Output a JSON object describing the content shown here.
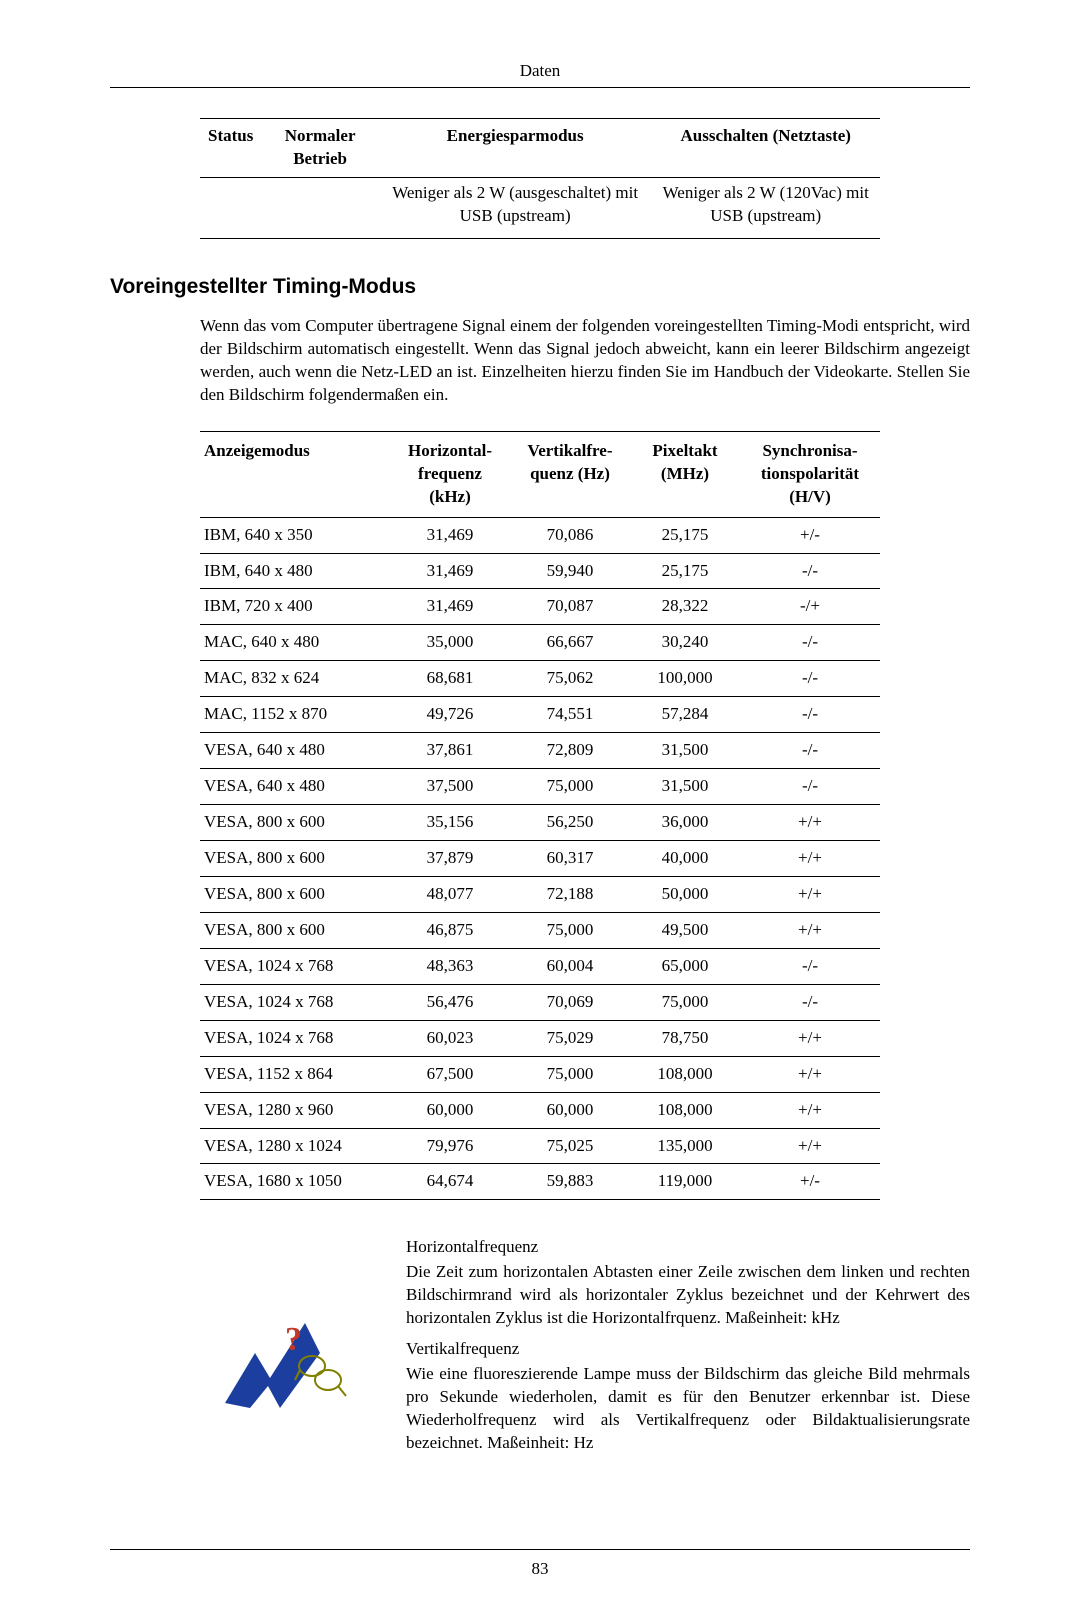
{
  "page": {
    "header_label": "Daten",
    "page_number": "83"
  },
  "status_table": {
    "headers": {
      "c1": "Status",
      "c2": "Normaler Betrieb",
      "c3": "Energiesparmodus",
      "c4": "Ausschalten (Netztaste)"
    },
    "row": {
      "c1": "",
      "c2": "",
      "c3": "Weniger als 2 W (ausgeschaltet) mit USB (upstream)",
      "c4": "Weniger als 2 W (120Vac) mit USB (upstream)"
    }
  },
  "section": {
    "title": "Voreingestellter Timing-Modus",
    "intro": "Wenn das vom Computer übertragene Signal einem der folgenden voreingestellten Timing-Modi entspricht, wird der Bildschirm automatisch eingestellt. Wenn das Signal jedoch abweicht, kann ein leerer Bildschirm angezeigt werden, auch wenn die Netz-LED an ist. Einzelheiten hierzu finden Sie im Handbuch der Videokarte. Stellen Sie den Bildschirm folgendermaßen ein."
  },
  "timing_table": {
    "headers": {
      "mode": "Anzeigemodus",
      "hfreq_l1": "Horizontal-",
      "hfreq_l2": "frequenz",
      "hfreq_l3": "(kHz)",
      "vfreq_l1": "Vertikalfre-",
      "vfreq_l2": "quenz (Hz)",
      "pix_l1": "Pixeltakt",
      "pix_l2": "(MHz)",
      "sync_l1": "Synchronisa-",
      "sync_l2": "tionspolarität",
      "sync_l3": "(H/V)"
    },
    "rows": [
      {
        "mode": "IBM, 640 x 350",
        "h": "31,469",
        "v": "70,086",
        "p": "25,175",
        "s": "+/-"
      },
      {
        "mode": "IBM, 640 x 480",
        "h": "31,469",
        "v": "59,940",
        "p": "25,175",
        "s": "-/-"
      },
      {
        "mode": "IBM, 720 x 400",
        "h": "31,469",
        "v": "70,087",
        "p": "28,322",
        "s": "-/+"
      },
      {
        "mode": "MAC, 640 x 480",
        "h": "35,000",
        "v": "66,667",
        "p": "30,240",
        "s": "-/-"
      },
      {
        "mode": "MAC, 832 x 624",
        "h": "68,681",
        "v": "75,062",
        "p": "100,000",
        "s": "-/-"
      },
      {
        "mode": "MAC, 1152 x 870",
        "h": "49,726",
        "v": "74,551",
        "p": "57,284",
        "s": "-/-"
      },
      {
        "mode": "VESA, 640 x 480",
        "h": "37,861",
        "v": "72,809",
        "p": "31,500",
        "s": "-/-"
      },
      {
        "mode": "VESA, 640 x 480",
        "h": "37,500",
        "v": "75,000",
        "p": "31,500",
        "s": "-/-"
      },
      {
        "mode": "VESA, 800 x 600",
        "h": "35,156",
        "v": "56,250",
        "p": "36,000",
        "s": "+/+"
      },
      {
        "mode": "VESA, 800 x 600",
        "h": "37,879",
        "v": "60,317",
        "p": "40,000",
        "s": "+/+"
      },
      {
        "mode": "VESA, 800 x 600",
        "h": "48,077",
        "v": "72,188",
        "p": "50,000",
        "s": "+/+"
      },
      {
        "mode": "VESA, 800 x 600",
        "h": "46,875",
        "v": "75,000",
        "p": "49,500",
        "s": "+/+"
      },
      {
        "mode": "VESA, 1024 x 768",
        "h": "48,363",
        "v": "60,004",
        "p": "65,000",
        "s": "-/-"
      },
      {
        "mode": "VESA, 1024 x 768",
        "h": "56,476",
        "v": "70,069",
        "p": "75,000",
        "s": "-/-"
      },
      {
        "mode": "VESA, 1024 x 768",
        "h": "60,023",
        "v": "75,029",
        "p": "78,750",
        "s": "+/+"
      },
      {
        "mode": "VESA, 1152 x 864",
        "h": "67,500",
        "v": "75,000",
        "p": "108,000",
        "s": "+/+"
      },
      {
        "mode": "VESA, 1280 x 960",
        "h": "60,000",
        "v": "60,000",
        "p": "108,000",
        "s": "+/+"
      },
      {
        "mode": "VESA, 1280 x 1024",
        "h": "79,976",
        "v": "75,025",
        "p": "135,000",
        "s": "+/+"
      },
      {
        "mode": "VESA, 1680 x 1050",
        "h": "64,674",
        "v": "59,883",
        "p": "119,000",
        "s": "+/-"
      }
    ]
  },
  "info": {
    "h1": "Horizontalfrequenz",
    "p1": "Die Zeit zum horizontalen Abtasten einer Zeile zwischen dem linken und rechten Bildschirmrand wird als horizontaler Zyklus bezeichnet und der Kehrwert des horizontalen Zyklus ist die Horizontalfrquenz. Maßeinheit: kHz",
    "h2": "Vertikalfrequenz",
    "p2": "Wie eine fluoreszierende Lampe muss der Bildschirm das gleiche Bild mehrmals pro Sekunde wiederholen, damit es für den Benutzer erkennbar ist. Diese Wiederholfrequenz wird als Vertikalfrequenz oder Bildaktualisierungsrate bezeichnet. Maßeinheit: Hz"
  },
  "icon": {
    "arrow_color": "#1c3e9e",
    "question_color": "#c0392b",
    "outline_color": "#808000"
  }
}
